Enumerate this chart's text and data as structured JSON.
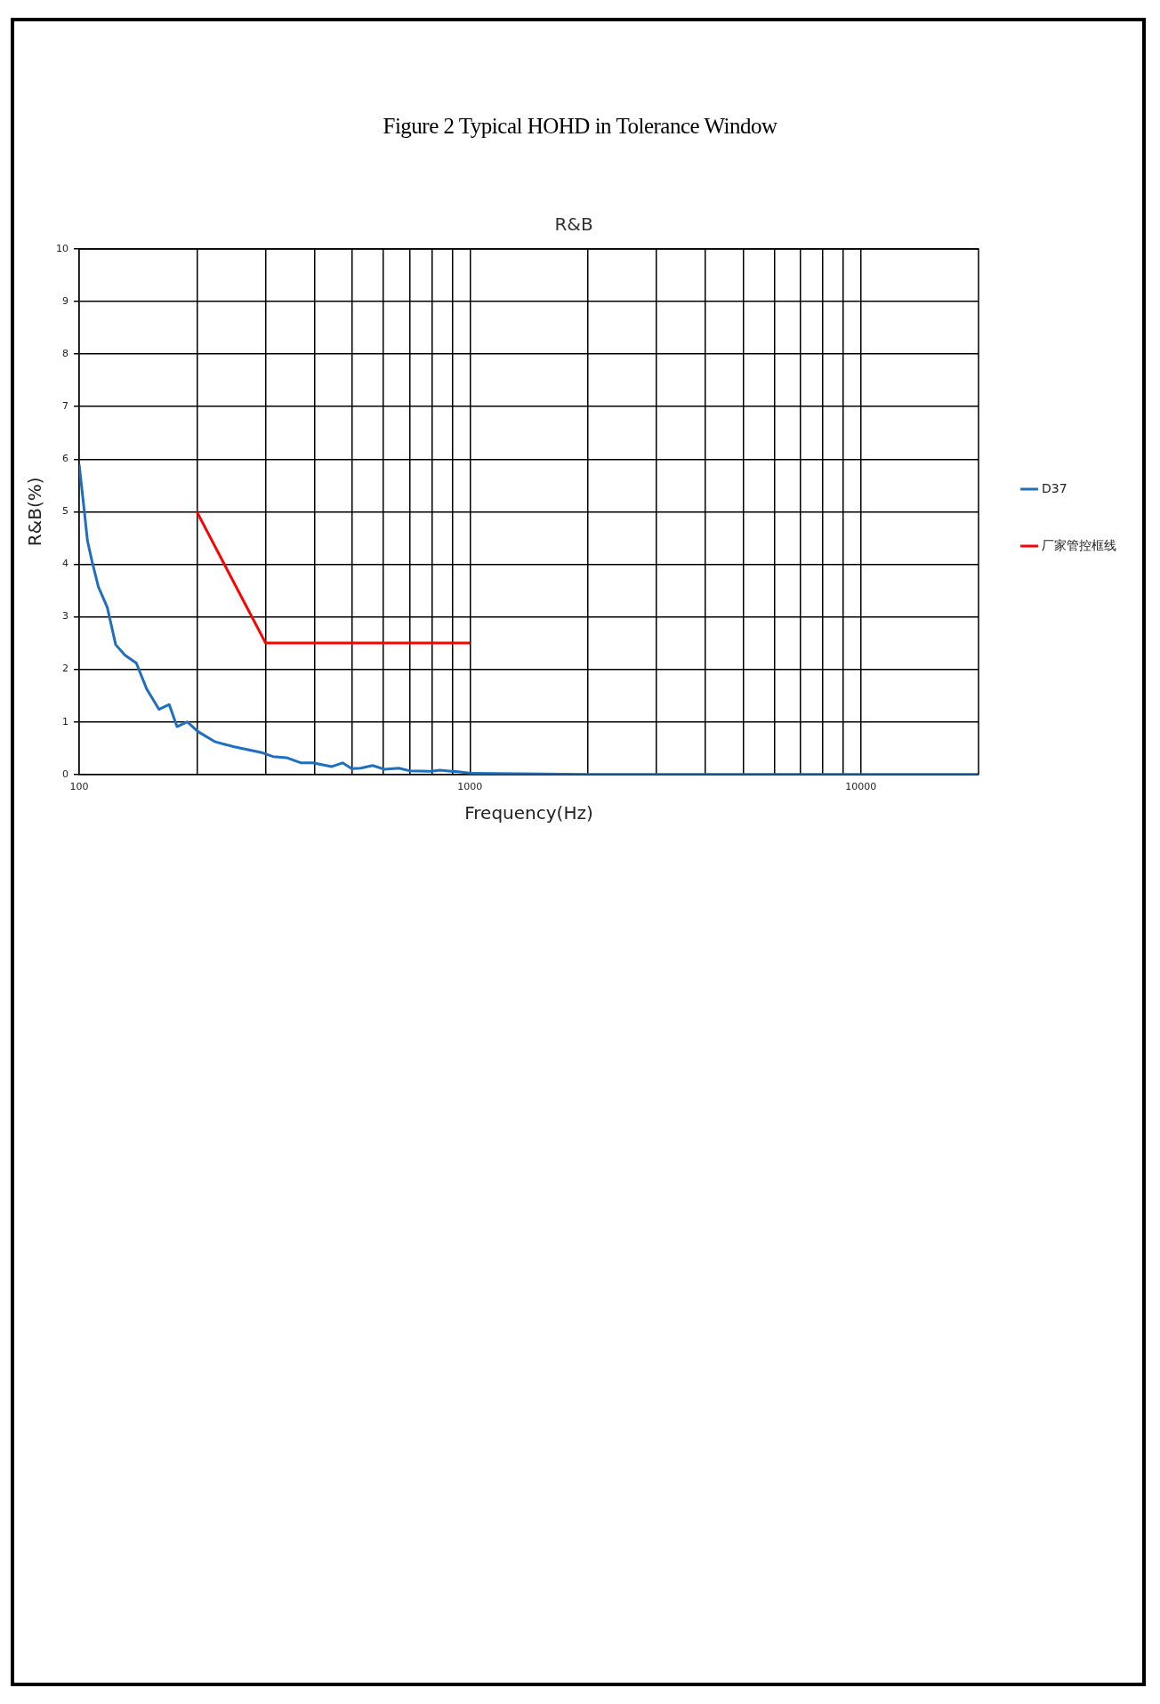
{
  "chart_data": {
    "type": "line",
    "title": "R&B",
    "xlabel": "Frequency(Hz)",
    "ylabel": "R&B(%)",
    "annotations": [
      "Figure 2 Typical HOHD in Tolerance Window"
    ],
    "series": [
      {
        "name": "D37",
        "color": "#1f6fbf",
        "x": [
          100,
          102.6,
          105,
          108,
          112,
          118,
          124,
          131,
          140,
          149,
          160,
          170,
          178,
          189,
          201,
          223,
          248,
          295,
          313,
          339,
          370,
          396,
          443,
          472,
          498,
          525,
          563,
          603,
          657,
          700,
          795,
          838,
          933,
          1016,
          2000,
          5000,
          10000,
          20000
        ],
        "values": [
          5.9,
          5.15,
          4.45,
          4.04,
          3.57,
          3.18,
          2.47,
          2.27,
          2.12,
          1.62,
          1.24,
          1.33,
          0.91,
          1.0,
          0.82,
          0.62,
          0.53,
          0.41,
          0.34,
          0.32,
          0.22,
          0.22,
          0.15,
          0.22,
          0.11,
          0.12,
          0.17,
          0.1,
          0.12,
          0.07,
          0.06,
          0.08,
          0.05,
          0.02,
          0,
          0,
          0,
          0
        ]
      },
      {
        "name": "厂家管控框线",
        "color": "#ff0000",
        "x": [
          200,
          300,
          1000
        ],
        "values": [
          5,
          2.5,
          2.5
        ]
      }
    ],
    "log": "x",
    "xlim": [
      100,
      20000
    ],
    "xticks": [
      100,
      {
        "value": 200,
        "label": null
      },
      {
        "value": 300,
        "label": null
      },
      {
        "value": 400,
        "label": null
      },
      {
        "value": 500,
        "label": null
      },
      {
        "value": 600,
        "label": null
      },
      {
        "value": 700,
        "label": null
      },
      {
        "value": 800,
        "label": null
      },
      {
        "value": 900,
        "label": null
      },
      1000,
      {
        "value": 2000,
        "label": null
      },
      {
        "value": 3000,
        "label": null
      },
      {
        "value": 4000,
        "label": null
      },
      {
        "value": 5000,
        "label": null
      },
      {
        "value": 6000,
        "label": null
      },
      {
        "value": 7000,
        "label": null
      },
      {
        "value": 8000,
        "label": null
      },
      {
        "value": 9000,
        "label": null
      },
      10000
    ],
    "ylim": [
      0,
      10
    ],
    "yticks": [
      0,
      1,
      2,
      3,
      4,
      5,
      6,
      7,
      8,
      9,
      10
    ],
    "grid": true,
    "legend": "right"
  }
}
